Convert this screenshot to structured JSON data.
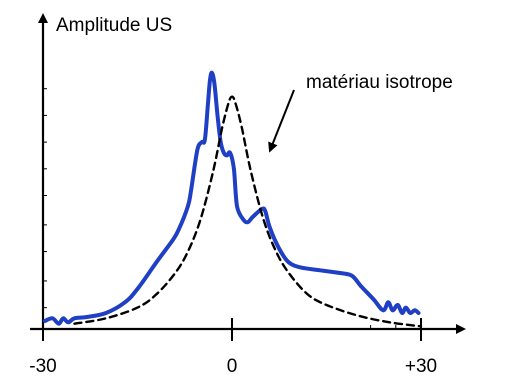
{
  "chart_data": {
    "type": "line",
    "title": "",
    "ylabel": "Amplitude US",
    "xlabel": "",
    "xlim": [
      -30,
      30
    ],
    "ylim": [
      0,
      1
    ],
    "x_ticks": [
      {
        "value": -30,
        "label": "-30"
      },
      {
        "value": 0,
        "label": "0"
      },
      {
        "value": 30,
        "label": "+30"
      }
    ],
    "y_ticks": [
      0.08,
      0.18,
      0.29,
      0.39,
      0.5,
      0.6,
      0.7,
      0.8,
      0.9
    ],
    "grid": false,
    "annotation": {
      "text": "matériau isotrope",
      "target_series": "isotrope"
    },
    "series": [
      {
        "color": "#1f3fc4",
        "style": "solid",
        "points": [
          [
            -29.7,
            0.03
          ],
          [
            -28.5,
            0.04
          ],
          [
            -27.5,
            0.02
          ],
          [
            -26.8,
            0.04
          ],
          [
            -26.0,
            0.025
          ],
          [
            -25.0,
            0.04
          ],
          [
            -23.0,
            0.045
          ],
          [
            -20.0,
            0.06
          ],
          [
            -17.0,
            0.1
          ],
          [
            -15.0,
            0.15
          ],
          [
            -12.0,
            0.25
          ],
          [
            -9.5,
            0.33
          ],
          [
            -8.5,
            0.37
          ],
          [
            -7.0,
            0.46
          ],
          [
            -6.5,
            0.52
          ],
          [
            -5.5,
            0.67
          ],
          [
            -4.8,
            0.7
          ],
          [
            -4.3,
            0.71
          ],
          [
            -3.8,
            0.85
          ],
          [
            -3.5,
            0.93
          ],
          [
            -3.2,
            0.96
          ],
          [
            -2.8,
            0.92
          ],
          [
            -2.3,
            0.8
          ],
          [
            -1.8,
            0.7
          ],
          [
            -1.3,
            0.66
          ],
          [
            -0.8,
            0.65
          ],
          [
            -0.3,
            0.66
          ],
          [
            0.3,
            0.6
          ],
          [
            0.8,
            0.46
          ],
          [
            1.8,
            0.41
          ],
          [
            2.5,
            0.4
          ],
          [
            3.3,
            0.42
          ],
          [
            4.8,
            0.45
          ],
          [
            5.3,
            0.44
          ],
          [
            6.0,
            0.38
          ],
          [
            7.5,
            0.3
          ],
          [
            9.0,
            0.25
          ],
          [
            11.0,
            0.23
          ],
          [
            14.0,
            0.22
          ],
          [
            17.0,
            0.21
          ],
          [
            19.0,
            0.2
          ],
          [
            20.5,
            0.16
          ],
          [
            22.5,
            0.11
          ],
          [
            24.0,
            0.07
          ],
          [
            24.8,
            0.1
          ],
          [
            25.5,
            0.07
          ],
          [
            26.3,
            0.09
          ],
          [
            27.0,
            0.06
          ],
          [
            27.6,
            0.08
          ],
          [
            28.3,
            0.06
          ],
          [
            29.0,
            0.07
          ],
          [
            29.6,
            0.06
          ]
        ]
      },
      {
        "name": "isotrope",
        "color": "#000000",
        "style": "dashed",
        "points": [
          [
            -25.0,
            0.02
          ],
          [
            -20.0,
            0.04
          ],
          [
            -15.0,
            0.08
          ],
          [
            -12.0,
            0.13
          ],
          [
            -9.0,
            0.21
          ],
          [
            -7.0,
            0.29
          ],
          [
            -5.0,
            0.41
          ],
          [
            -3.0,
            0.59
          ],
          [
            -1.5,
            0.76
          ],
          [
            -0.5,
            0.85
          ],
          [
            0.0,
            0.87
          ],
          [
            0.5,
            0.85
          ],
          [
            1.5,
            0.76
          ],
          [
            3.0,
            0.59
          ],
          [
            5.0,
            0.41
          ],
          [
            7.0,
            0.29
          ],
          [
            9.0,
            0.21
          ],
          [
            12.0,
            0.13
          ],
          [
            15.0,
            0.09
          ],
          [
            20.0,
            0.05
          ],
          [
            25.0,
            0.025
          ],
          [
            30.0,
            0.01
          ]
        ]
      }
    ]
  }
}
